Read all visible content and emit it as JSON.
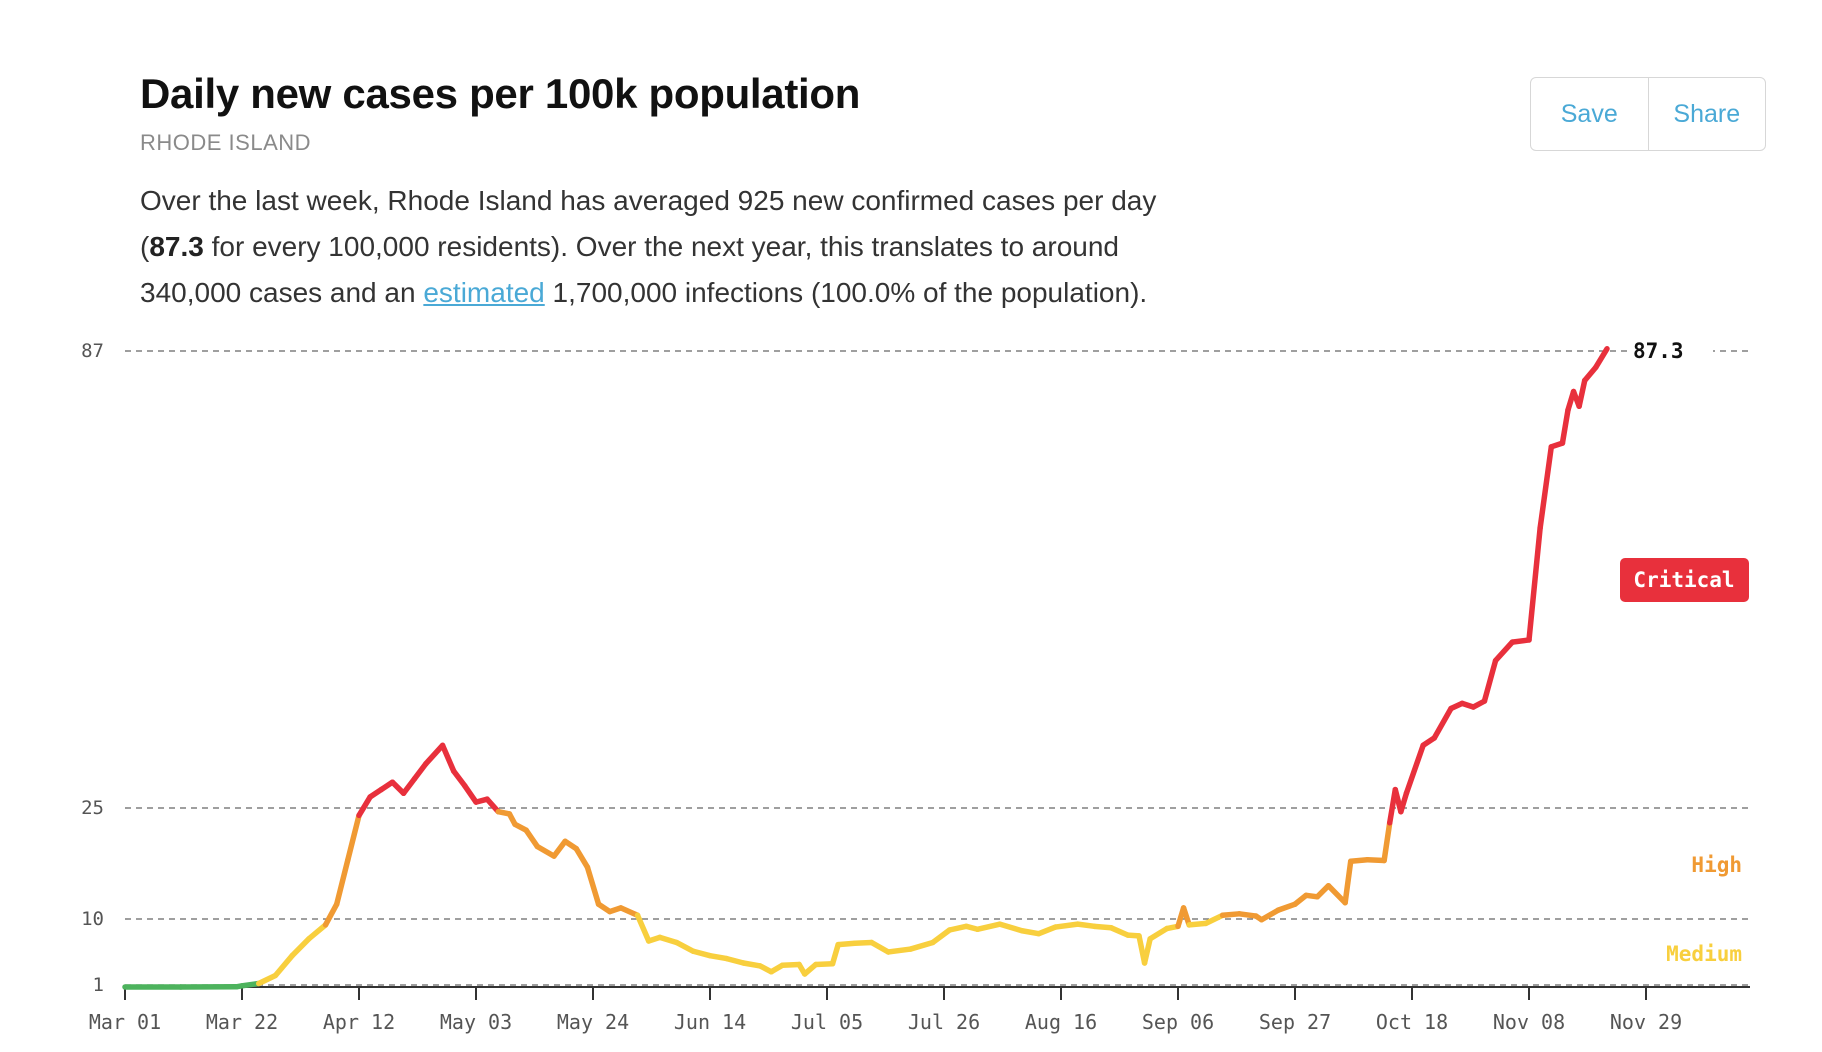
{
  "header": {
    "title": "Daily new cases per 100k population",
    "region": "RHODE ISLAND"
  },
  "summary": {
    "p1": "Over the last week, Rhode Island has averaged 925 new confirmed cases per day (",
    "bold": "87.3",
    "p2": " for every 100,000 residents). Over the next year, this translates to around 340,000 cases and an ",
    "link": "estimated",
    "p3": " 1,700,000 infections (100.0% of the population)."
  },
  "buttons": {
    "save": "Save",
    "share": "Share"
  },
  "colors": {
    "low": "#4db35d",
    "medium": "#f8cf3e",
    "high": "#f09a33",
    "critical": "#e8303c",
    "link": "#4aa9d6"
  },
  "chart_data": {
    "type": "line",
    "title": "Daily new cases per 100k population",
    "y_ticks": [
      1,
      10,
      25,
      87
    ],
    "x_ticks": [
      "Mar 01",
      "Mar 22",
      "Apr 12",
      "May 03",
      "May 24",
      "Jun 14",
      "Jul 05",
      "Jul 26",
      "Aug 16",
      "Sep 06",
      "Sep 27",
      "Oct 18",
      "Nov 08",
      "Nov 29"
    ],
    "x_range": [
      "2020-03-01",
      "2020-12-20"
    ],
    "y_range": [
      0,
      87
    ],
    "y_scale": "piecewise",
    "thresholds": [
      {
        "label": "Medium",
        "from": 1,
        "to": 10
      },
      {
        "label": "High",
        "from": 10,
        "to": 25
      },
      {
        "label": "Critical",
        "from": 25,
        "to": null
      }
    ],
    "last_value_label": "87.3",
    "series": [
      {
        "points": [
          [
            "2020-03-01",
            0
          ],
          [
            "2020-03-11",
            0
          ],
          [
            "2020-03-21",
            0.1
          ],
          [
            "2020-03-22",
            0.6
          ],
          [
            "2020-03-25",
            1.2
          ],
          [
            "2020-03-28",
            2.3
          ],
          [
            "2020-03-31",
            5.0
          ],
          [
            "2020-04-03",
            7.3
          ],
          [
            "2020-04-06",
            9.2
          ],
          [
            "2020-04-08",
            12.0
          ],
          [
            "2020-04-10",
            18.0
          ],
          [
            "2020-04-12",
            24.0
          ],
          [
            "2020-04-14",
            26.5
          ],
          [
            "2020-04-16",
            27.5
          ],
          [
            "2020-04-18",
            28.5
          ],
          [
            "2020-04-20",
            27.0
          ],
          [
            "2020-04-22",
            29.0
          ],
          [
            "2020-04-24",
            31.0
          ],
          [
            "2020-04-27",
            33.5
          ],
          [
            "2020-04-29",
            30.0
          ],
          [
            "2020-05-01",
            28.0
          ],
          [
            "2020-05-03",
            25.8
          ],
          [
            "2020-05-05",
            26.2
          ],
          [
            "2020-05-07",
            24.5
          ],
          [
            "2020-05-09",
            24.2
          ],
          [
            "2020-05-10",
            22.8
          ],
          [
            "2020-05-12",
            22.0
          ],
          [
            "2020-05-14",
            19.8
          ],
          [
            "2020-05-17",
            18.5
          ],
          [
            "2020-05-19",
            20.5
          ],
          [
            "2020-05-21",
            19.5
          ],
          [
            "2020-05-23",
            17.0
          ],
          [
            "2020-05-25",
            12.0
          ],
          [
            "2020-05-27",
            11.0
          ],
          [
            "2020-05-29",
            11.5
          ],
          [
            "2020-06-01",
            10.5
          ],
          [
            "2020-06-03",
            7.0
          ],
          [
            "2020-06-05",
            7.5
          ],
          [
            "2020-06-08",
            6.8
          ],
          [
            "2020-06-11",
            5.6
          ],
          [
            "2020-06-14",
            5.0
          ],
          [
            "2020-06-17",
            4.6
          ],
          [
            "2020-06-20",
            4.0
          ],
          [
            "2020-06-23",
            3.6
          ],
          [
            "2020-06-25",
            2.8
          ],
          [
            "2020-06-27",
            3.7
          ],
          [
            "2020-06-30",
            3.8
          ],
          [
            "2020-07-01",
            2.5
          ],
          [
            "2020-07-03",
            3.8
          ],
          [
            "2020-07-06",
            3.9
          ],
          [
            "2020-07-07",
            6.5
          ],
          [
            "2020-07-10",
            6.7
          ],
          [
            "2020-07-13",
            6.8
          ],
          [
            "2020-07-16",
            5.5
          ],
          [
            "2020-07-20",
            5.9
          ],
          [
            "2020-07-24",
            6.8
          ],
          [
            "2020-07-27",
            8.5
          ],
          [
            "2020-07-30",
            9.0
          ],
          [
            "2020-08-01",
            8.6
          ],
          [
            "2020-08-05",
            9.3
          ],
          [
            "2020-08-09",
            8.4
          ],
          [
            "2020-08-12",
            8.0
          ],
          [
            "2020-08-15",
            8.9
          ],
          [
            "2020-08-19",
            9.3
          ],
          [
            "2020-08-22",
            9.0
          ],
          [
            "2020-08-25",
            8.8
          ],
          [
            "2020-08-28",
            7.8
          ],
          [
            "2020-08-30",
            7.7
          ],
          [
            "2020-08-31",
            4.0
          ],
          [
            "2020-09-01",
            7.3
          ],
          [
            "2020-09-04",
            8.7
          ],
          [
            "2020-09-06",
            9.0
          ],
          [
            "2020-09-07",
            11.5
          ],
          [
            "2020-09-08",
            9.2
          ],
          [
            "2020-09-11",
            9.4
          ],
          [
            "2020-09-14",
            10.5
          ],
          [
            "2020-09-17",
            10.7
          ],
          [
            "2020-09-20",
            10.4
          ],
          [
            "2020-09-21",
            9.9
          ],
          [
            "2020-09-24",
            11.2
          ],
          [
            "2020-09-27",
            12.0
          ],
          [
            "2020-09-29",
            13.2
          ],
          [
            "2020-10-01",
            13.0
          ],
          [
            "2020-10-03",
            14.5
          ],
          [
            "2020-10-06",
            12.2
          ],
          [
            "2020-10-07",
            17.8
          ],
          [
            "2020-10-10",
            18.0
          ],
          [
            "2020-10-13",
            17.9
          ],
          [
            "2020-10-14",
            23.0
          ],
          [
            "2020-10-15",
            27.5
          ],
          [
            "2020-10-16",
            24.5
          ],
          [
            "2020-10-17",
            27.0
          ],
          [
            "2020-10-20",
            33.5
          ],
          [
            "2020-10-22",
            34.5
          ],
          [
            "2020-10-25",
            38.5
          ],
          [
            "2020-10-27",
            39.2
          ],
          [
            "2020-10-29",
            38.7
          ],
          [
            "2020-10-31",
            39.5
          ],
          [
            "2020-11-02",
            45.0
          ],
          [
            "2020-11-05",
            47.5
          ],
          [
            "2020-11-08",
            47.8
          ],
          [
            "2020-11-10",
            63.0
          ],
          [
            "2020-11-12",
            74.0
          ],
          [
            "2020-11-14",
            74.5
          ],
          [
            "2020-11-15",
            79.0
          ],
          [
            "2020-11-16",
            81.5
          ],
          [
            "2020-11-17",
            79.5
          ],
          [
            "2020-11-18",
            83.0
          ],
          [
            "2020-11-20",
            84.8
          ],
          [
            "2020-11-22",
            87.3
          ]
        ]
      }
    ]
  }
}
